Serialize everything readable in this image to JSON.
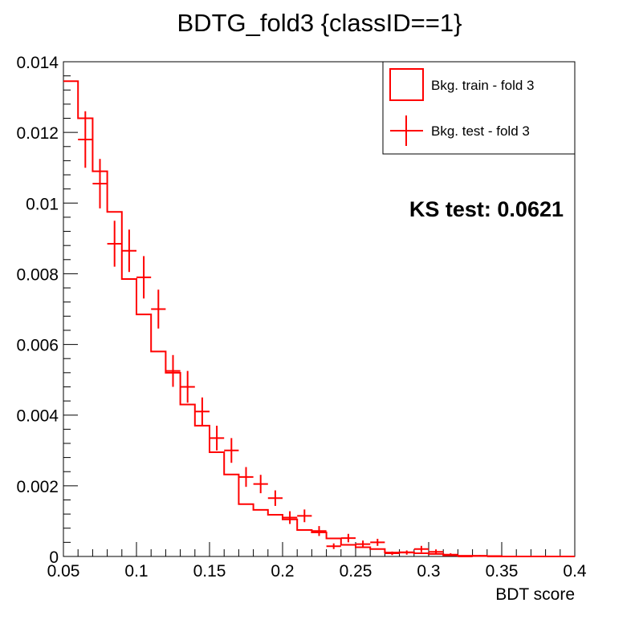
{
  "chart_data": {
    "type": "histogram",
    "title": "BDTG_fold3 {classID==1}",
    "xlabel": "BDT score",
    "ylabel": "",
    "xlim": [
      0.05,
      0.4
    ],
    "ylim": [
      0,
      0.014
    ],
    "x_ticks": [
      "0.05",
      "0.1",
      "0.15",
      "0.2",
      "0.25",
      "0.3",
      "0.35",
      "0.4"
    ],
    "y_ticks": [
      "0",
      "0.002",
      "0.004",
      "0.006",
      "0.008",
      "0.01",
      "0.012",
      "0.014"
    ],
    "bin_width": 0.01,
    "bin_edges_start": 0.05,
    "legend_position": "top-right",
    "annotation": "KS test: 0.0621",
    "color": "#ff0000",
    "series": [
      {
        "name": "Bkg. train - fold 3",
        "style": "step",
        "values": [
          0.01345,
          0.0124,
          0.0109,
          0.00975,
          0.00785,
          0.00685,
          0.0058,
          0.0052,
          0.0043,
          0.0037,
          0.00295,
          0.00232,
          0.00148,
          0.00132,
          0.00118,
          0.00105,
          0.00075,
          0.00068,
          0.00051,
          0.00033,
          0.00026,
          0.00021,
          0.00011,
          0.00012,
          9e-05,
          7e-05,
          3e-05,
          2e-05,
          1e-05,
          1e-05,
          0.0,
          0.0,
          0.0,
          0.0,
          0.0
        ]
      },
      {
        "name": "Bkg. test - fold 3",
        "style": "errorbar",
        "values": [
          null,
          0.0118,
          0.01055,
          0.00885,
          0.00865,
          0.0079,
          0.007,
          0.00525,
          0.0048,
          0.0041,
          0.00335,
          0.003,
          0.00225,
          0.00205,
          0.00165,
          0.0011,
          0.00115,
          0.00072,
          0.00029,
          0.00052,
          0.00035,
          0.0004,
          9e-05,
          0.00011,
          0.00021,
          0.00013,
          5e-05,
          0.0,
          2e-05,
          0.0,
          null,
          null,
          null,
          null,
          null
        ],
        "errors": [
          0,
          0.0008,
          0.0007,
          0.00065,
          0.0006,
          0.0006,
          0.00055,
          0.00045,
          0.00045,
          0.0004,
          0.00035,
          0.00035,
          0.00028,
          0.00026,
          0.00022,
          0.00018,
          0.00018,
          0.00014,
          8e-05,
          0.00012,
          0.0001,
          0.0001,
          5e-05,
          6e-05,
          9e-05,
          7e-05,
          4e-05,
          0,
          2e-05,
          0,
          0,
          0,
          0,
          0,
          0
        ]
      }
    ]
  }
}
